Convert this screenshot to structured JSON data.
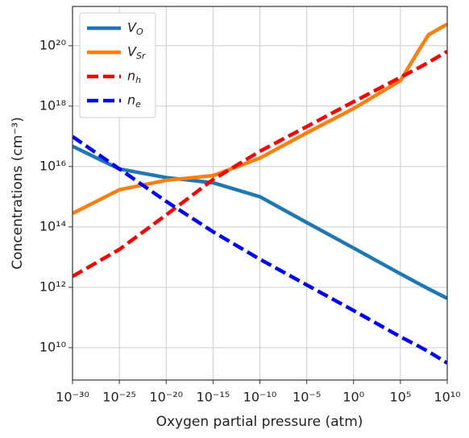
{
  "chart_data": {
    "type": "line",
    "log_x": true,
    "log_y": true,
    "grid": true,
    "legend": "upper left",
    "xlabel": "Oxygen partial pressure (atm)",
    "ylabel": "Concentrations (cm⁻³)",
    "x": [
      1e-30,
      1e-25,
      1e-20,
      1e-15,
      1e-10,
      1e-05,
      1,
      100000.0,
      10000000.0,
      100000000.0,
      10000000000.0
    ],
    "xlim": [
      1e-30,
      10000000000.0
    ],
    "xticks": [
      {
        "value": 1e-30,
        "label": "10⁻³⁰"
      },
      {
        "value": 1e-25,
        "label": "10⁻²⁵"
      },
      {
        "value": 1e-20,
        "label": "10⁻²⁰"
      },
      {
        "value": 1e-15,
        "label": "10⁻¹⁵"
      },
      {
        "value": 1e-10,
        "label": "10⁻¹⁰"
      },
      {
        "value": 1e-05,
        "label": "10⁻⁵"
      },
      {
        "value": 1,
        "label": "10⁰"
      },
      {
        "value": 100000.0,
        "label": "10⁵"
      },
      {
        "value": 10000000000.0,
        "label": "10¹⁰"
      }
    ],
    "ylim": [
      850000000.0,
      2e+21
    ],
    "yticks": [
      {
        "value": 10000000000.0,
        "label": "10¹⁰"
      },
      {
        "value": 1000000000000.0,
        "label": "10¹²"
      },
      {
        "value": 100000000000000.0,
        "label": "10¹⁴"
      },
      {
        "value": 1e+16,
        "label": "10¹⁶"
      },
      {
        "value": 1e+18,
        "label": "10¹⁸"
      },
      {
        "value": 1e+20,
        "label": "10²⁰"
      }
    ],
    "series": [
      {
        "name": "V_O",
        "color": "#1f77b4",
        "dashed": false,
        "values": [
          4.7e+16,
          8300000000000000.0,
          4300000000000000.0,
          2900000000000000.0,
          1000000000000000.0,
          140000000000000.0,
          20000000000000.0,
          2800000000000.0,
          1300000000000.0,
          890000000000.0,
          430000000000.0
        ]
      },
      {
        "name": "V_Sr",
        "color": "#ff7f0e",
        "dashed": false,
        "values": [
          280000000000000.0,
          1700000000000000.0,
          3500000000000000.0,
          5000000000000000.0,
          1.9e+16,
          1.3e+17,
          8.3e+17,
          7e+18,
          7.4e+19,
          2.3e+20,
          5.2e+20
        ]
      },
      {
        "name": "n_h",
        "color": "#ff0000",
        "dashed": true,
        "values": [
          2300000000000.0,
          18000000000000.0,
          250000000000000.0,
          3700000000000000.0,
          3.2e+16,
          2.1e+17,
          1.4e+18,
          9e+18,
          1.9e+19,
          2.8e+19,
          6.5e+19
        ]
      },
      {
        "name": "n_e",
        "color": "#0000ff",
        "dashed": true,
        "values": [
          9.8e+16,
          8300000000000000.0,
          700000000000000.0,
          69000000000000.0,
          8500000000000.0,
          1200000000000.0,
          170000000000.0,
          23000000000.0,
          11000000000.0,
          7400000000.0,
          3100000000.0
        ]
      }
    ]
  }
}
